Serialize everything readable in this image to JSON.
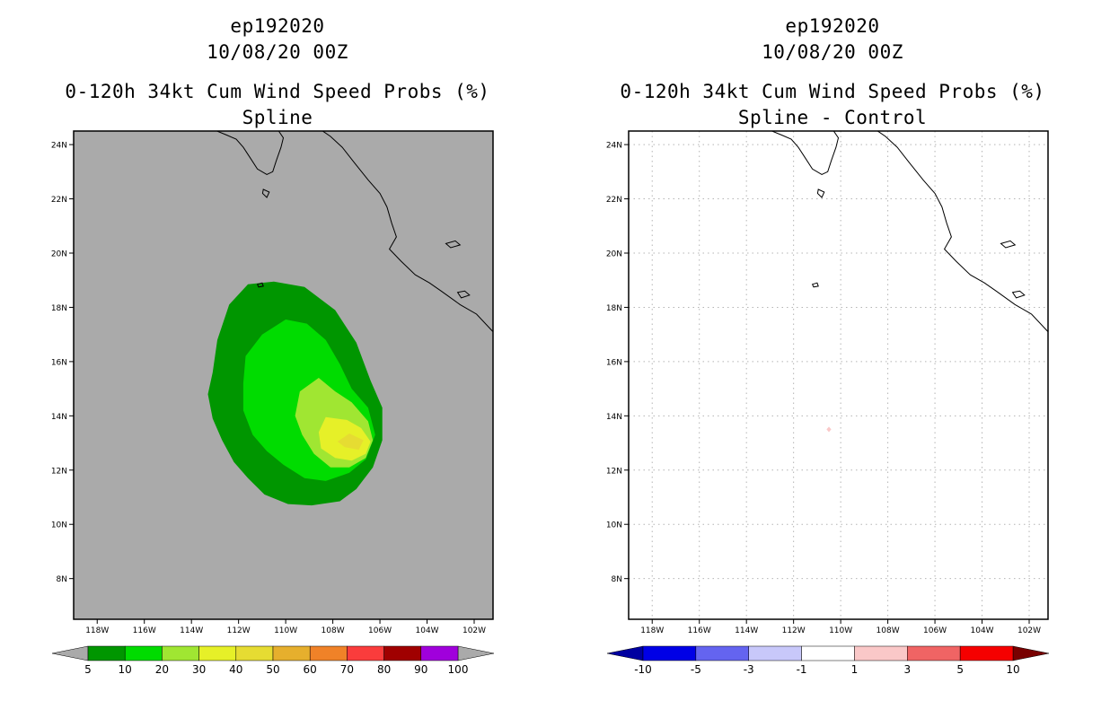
{
  "chart_data": [
    {
      "type": "contour-map",
      "title_lines": [
        "ep192020",
        "10/08/20 00Z",
        "0-120h 34kt Cum Wind Speed Probs (%)",
        "Spline"
      ],
      "x_ticks": [
        "118W",
        "116W",
        "114W",
        "112W",
        "110W",
        "108W",
        "106W",
        "104W",
        "102W"
      ],
      "y_ticks": [
        "24N",
        "22N",
        "20N",
        "18N",
        "16N",
        "14N",
        "12N",
        "10N",
        "8N"
      ],
      "lon_range": [
        -119.0,
        -101.2
      ],
      "lat_range": [
        6.5,
        24.5
      ],
      "background_color": "#aaaaaa",
      "grid": false,
      "colorbar": {
        "labels": [
          "5",
          "10",
          "20",
          "30",
          "40",
          "50",
          "60",
          "70",
          "80",
          "90",
          "100"
        ],
        "colors": [
          "#009600",
          "#00dc00",
          "#a0e632",
          "#e6f028",
          "#e6dc32",
          "#e6af2d",
          "#f08228",
          "#fa3c3c",
          "#a00000",
          "#a000dc"
        ],
        "end_colors": [
          "#aaaaaa",
          "#aaaaaa"
        ]
      },
      "contours": [
        {
          "min": 5,
          "color": "#009600",
          "polygon": [
            [
              -111.6,
              18.85
            ],
            [
              -110.5,
              18.95
            ],
            [
              -109.2,
              18.75
            ],
            [
              -107.9,
              17.9
            ],
            [
              -107.0,
              16.7
            ],
            [
              -106.4,
              15.3
            ],
            [
              -105.9,
              14.3
            ],
            [
              -105.9,
              13.1
            ],
            [
              -106.3,
              12.1
            ],
            [
              -107.0,
              11.3
            ],
            [
              -107.7,
              10.85
            ],
            [
              -108.9,
              10.7
            ],
            [
              -109.9,
              10.75
            ],
            [
              -110.9,
              11.1
            ],
            [
              -111.6,
              11.7
            ],
            [
              -112.2,
              12.3
            ],
            [
              -112.7,
              13.1
            ],
            [
              -113.1,
              13.9
            ],
            [
              -113.3,
              14.8
            ],
            [
              -113.1,
              15.6
            ],
            [
              -112.9,
              16.8
            ],
            [
              -112.4,
              18.1
            ]
          ]
        },
        {
          "min": 10,
          "color": "#00dc00",
          "polygon": [
            [
              -110.0,
              17.55
            ],
            [
              -109.1,
              17.4
            ],
            [
              -108.3,
              16.8
            ],
            [
              -107.7,
              15.9
            ],
            [
              -107.2,
              15.0
            ],
            [
              -106.5,
              14.3
            ],
            [
              -106.2,
              13.3
            ],
            [
              -106.6,
              12.4
            ],
            [
              -107.3,
              11.9
            ],
            [
              -108.3,
              11.6
            ],
            [
              -109.2,
              11.7
            ],
            [
              -110.1,
              12.2
            ],
            [
              -110.8,
              12.7
            ],
            [
              -111.4,
              13.3
            ],
            [
              -111.8,
              14.2
            ],
            [
              -111.8,
              15.2
            ],
            [
              -111.7,
              16.2
            ],
            [
              -111.0,
              17.0
            ]
          ]
        },
        {
          "min": 20,
          "color": "#a0e632",
          "polygon": [
            [
              -108.6,
              15.4
            ],
            [
              -107.9,
              14.9
            ],
            [
              -107.2,
              14.5
            ],
            [
              -106.5,
              13.8
            ],
            [
              -106.3,
              13.1
            ],
            [
              -106.6,
              12.45
            ],
            [
              -107.3,
              12.1
            ],
            [
              -108.1,
              12.1
            ],
            [
              -108.8,
              12.6
            ],
            [
              -109.3,
              13.3
            ],
            [
              -109.6,
              14.0
            ],
            [
              -109.4,
              14.9
            ]
          ]
        },
        {
          "min": 30,
          "color": "#e6f028",
          "polygon": [
            [
              -108.3,
              13.95
            ],
            [
              -107.4,
              13.85
            ],
            [
              -106.8,
              13.55
            ],
            [
              -106.4,
              13.05
            ],
            [
              -106.6,
              12.6
            ],
            [
              -107.2,
              12.35
            ],
            [
              -107.9,
              12.45
            ],
            [
              -108.5,
              12.8
            ],
            [
              -108.6,
              13.4
            ]
          ]
        },
        {
          "min": 40,
          "color": "#e6dc32",
          "polygon": [
            [
              -107.3,
              13.35
            ],
            [
              -106.7,
              13.1
            ],
            [
              -106.9,
              12.75
            ],
            [
              -107.5,
              12.85
            ],
            [
              -107.8,
              13.05
            ]
          ]
        }
      ]
    },
    {
      "type": "contour-map",
      "title_lines": [
        "ep192020",
        "10/08/20 00Z",
        "0-120h 34kt Cum Wind Speed Probs (%)",
        "Spline - Control"
      ],
      "x_ticks": [
        "118W",
        "116W",
        "114W",
        "112W",
        "110W",
        "108W",
        "106W",
        "104W",
        "102W"
      ],
      "y_ticks": [
        "24N",
        "22N",
        "20N",
        "18N",
        "16N",
        "14N",
        "12N",
        "10N",
        "8N"
      ],
      "lon_range": [
        -119.0,
        -101.2
      ],
      "lat_range": [
        6.5,
        24.5
      ],
      "background_color": "#ffffff",
      "grid": true,
      "colorbar": {
        "labels": [
          "-10",
          "-5",
          "-3",
          "-1",
          "1",
          "3",
          "5",
          "10"
        ],
        "colors": [
          "#0000e6",
          "#6464f0",
          "#c8c8fa",
          "#ffffff",
          "#fac8c8",
          "#f06464",
          "#f50000"
        ],
        "end_colors": [
          "#0000a0",
          "#780000"
        ]
      },
      "contours": [
        {
          "min": 1,
          "color": "#fac8c8",
          "polygon": [
            [
              -110.5,
              13.6
            ],
            [
              -110.4,
              13.5
            ],
            [
              -110.5,
              13.4
            ],
            [
              -110.6,
              13.5
            ]
          ]
        }
      ]
    }
  ],
  "coastline": [
    [
      -113.2,
      24.6
    ],
    [
      -112.5,
      24.35
    ],
    [
      -112.1,
      24.2
    ],
    [
      -111.8,
      23.9
    ],
    [
      -111.5,
      23.5
    ],
    [
      -111.2,
      23.1
    ],
    [
      -110.8,
      22.9
    ],
    [
      -110.55,
      23.0
    ],
    [
      -110.4,
      23.4
    ],
    [
      -110.2,
      23.9
    ],
    [
      -110.1,
      24.25
    ],
    [
      -110.3,
      24.5
    ],
    [
      -110.5,
      24.6
    ]
  ],
  "coastline2": [
    [
      -108.6,
      24.6
    ],
    [
      -108.1,
      24.3
    ],
    [
      -107.6,
      23.9
    ],
    [
      -107.1,
      23.35
    ],
    [
      -106.5,
      22.7
    ],
    [
      -106.0,
      22.2
    ],
    [
      -105.7,
      21.7
    ],
    [
      -105.5,
      21.1
    ],
    [
      -105.3,
      20.6
    ],
    [
      -105.6,
      20.15
    ],
    [
      -105.1,
      19.7
    ],
    [
      -104.5,
      19.2
    ],
    [
      -103.9,
      18.9
    ],
    [
      -103.4,
      18.6
    ],
    [
      -102.6,
      18.1
    ],
    [
      -101.9,
      17.75
    ],
    [
      -101.2,
      17.1
    ]
  ],
  "islands": [
    [
      [
        -110.95,
        22.35
      ],
      [
        -110.7,
        22.25
      ],
      [
        -110.8,
        22.05
      ],
      [
        -110.98,
        22.2
      ]
    ],
    [
      [
        -103.2,
        20.35
      ],
      [
        -102.8,
        20.45
      ],
      [
        -102.6,
        20.3
      ],
      [
        -103.0,
        20.2
      ]
    ],
    [
      [
        -102.7,
        18.55
      ],
      [
        -102.4,
        18.6
      ],
      [
        -102.2,
        18.45
      ],
      [
        -102.55,
        18.35
      ]
    ],
    [
      [
        -111.2,
        18.85
      ],
      [
        -111.0,
        18.9
      ],
      [
        -110.95,
        18.78
      ],
      [
        -111.15,
        18.75
      ]
    ]
  ]
}
